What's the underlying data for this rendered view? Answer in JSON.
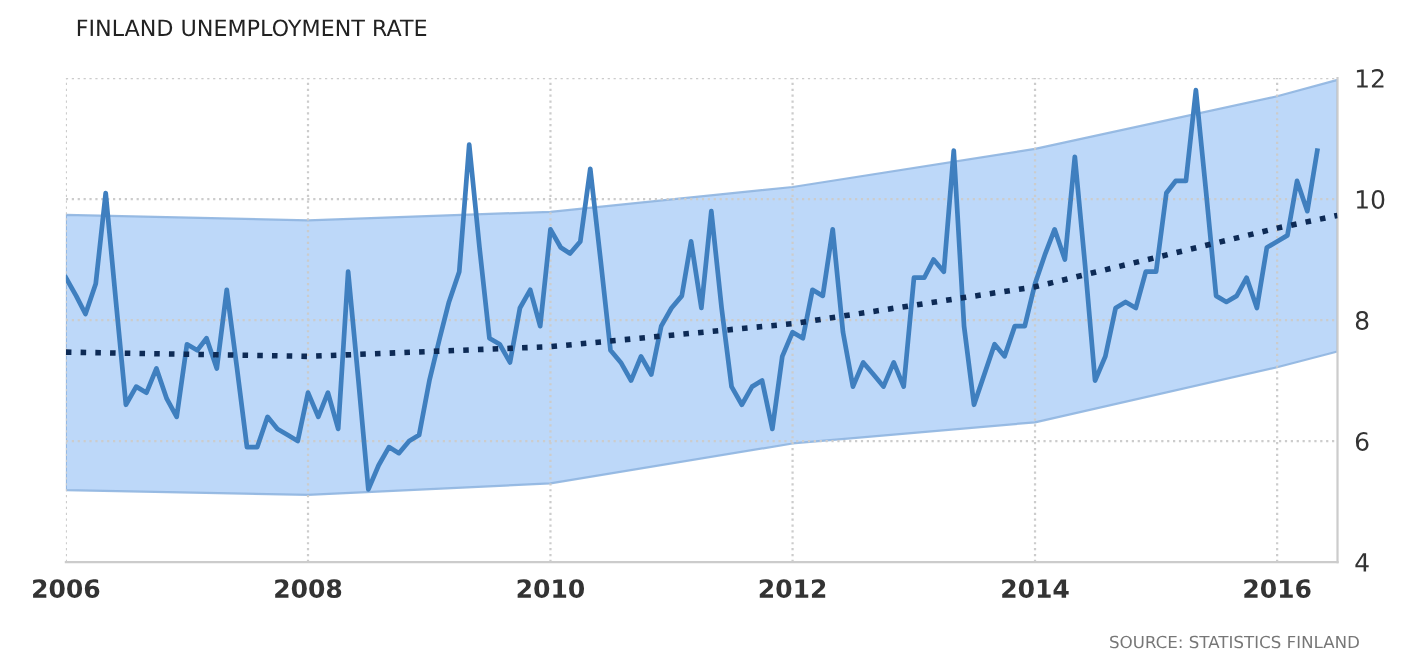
{
  "chart_data": {
    "type": "line",
    "title": "FINLAND UNEMPLOYMENT RATE",
    "annotations": [
      "SOURCE: STATISTICS FINLAND"
    ],
    "x": [
      "2006-01",
      "2006-02",
      "2006-03",
      "2006-04",
      "2006-05",
      "2006-06",
      "2006-07",
      "2006-08",
      "2006-09",
      "2006-10",
      "2006-11",
      "2006-12",
      "2007-01",
      "2007-02",
      "2007-03",
      "2007-04",
      "2007-05",
      "2007-06",
      "2007-07",
      "2007-08",
      "2007-09",
      "2007-10",
      "2007-11",
      "2007-12",
      "2008-01",
      "2008-02",
      "2008-03",
      "2008-04",
      "2008-05",
      "2008-06",
      "2008-07",
      "2008-08",
      "2008-09",
      "2008-10",
      "2008-11",
      "2008-12",
      "2009-01",
      "2009-02",
      "2009-03",
      "2009-04",
      "2009-05",
      "2009-06",
      "2009-07",
      "2009-08",
      "2009-09",
      "2009-10",
      "2009-11",
      "2009-12",
      "2010-01",
      "2010-02",
      "2010-03",
      "2010-04",
      "2010-05",
      "2010-06",
      "2010-07",
      "2010-08",
      "2010-09",
      "2010-10",
      "2010-11",
      "2010-12",
      "2011-01",
      "2011-02",
      "2011-03",
      "2011-04",
      "2011-05",
      "2011-06",
      "2011-07",
      "2011-08",
      "2011-09",
      "2011-10",
      "2011-11",
      "2011-12",
      "2012-01",
      "2012-02",
      "2012-03",
      "2012-04",
      "2012-05",
      "2012-06",
      "2012-07",
      "2012-08",
      "2012-09",
      "2012-10",
      "2012-11",
      "2012-12",
      "2013-01",
      "2013-02",
      "2013-03",
      "2013-04",
      "2013-05",
      "2013-06",
      "2013-07",
      "2013-08",
      "2013-09",
      "2013-10",
      "2013-11",
      "2013-12",
      "2014-01",
      "2014-02",
      "2014-03",
      "2014-04",
      "2014-05",
      "2014-06",
      "2014-07",
      "2014-08",
      "2014-09",
      "2014-10",
      "2014-11",
      "2014-12",
      "2015-01",
      "2015-02",
      "2015-03",
      "2015-04",
      "2015-05",
      "2015-06",
      "2015-07",
      "2015-08",
      "2015-09",
      "2015-10",
      "2015-11",
      "2015-12",
      "2016-01",
      "2016-02",
      "2016-03",
      "2016-04",
      "2016-05"
    ],
    "series": [
      {
        "color": "#3f7fbf",
        "values": [
          8.7,
          8.4,
          8.1,
          8.6,
          10.1,
          8.3,
          6.6,
          6.9,
          6.8,
          7.2,
          6.7,
          6.4,
          7.6,
          7.5,
          7.7,
          7.2,
          8.5,
          7.2,
          5.9,
          5.9,
          6.4,
          6.2,
          6.1,
          6.0,
          6.8,
          6.4,
          6.8,
          6.2,
          8.8,
          7.0,
          5.2,
          5.6,
          5.9,
          5.8,
          6.0,
          6.1,
          7.0,
          7.7,
          8.3,
          8.8,
          10.9,
          9.2,
          7.7,
          7.6,
          7.3,
          8.2,
          8.5,
          7.9,
          9.5,
          9.2,
          9.1,
          9.3,
          10.5,
          9.0,
          7.5,
          7.3,
          7.0,
          7.4,
          7.1,
          7.9,
          8.2,
          8.4,
          9.3,
          8.2,
          9.8,
          8.2,
          6.9,
          6.6,
          6.9,
          7.0,
          6.2,
          7.4,
          7.8,
          7.7,
          8.5,
          8.4,
          9.5,
          7.8,
          6.9,
          7.3,
          7.1,
          6.9,
          7.3,
          6.9,
          8.7,
          8.7,
          9.0,
          8.8,
          10.8,
          7.9,
          6.6,
          7.1,
          7.6,
          7.4,
          7.9,
          7.9,
          8.6,
          9.1,
          9.5,
          9.0,
          10.7,
          8.9,
          7.0,
          7.4,
          8.2,
          8.3,
          8.2,
          8.8,
          8.8,
          10.1,
          10.3,
          10.3,
          11.8,
          10.1,
          8.4,
          8.3,
          8.4,
          8.7,
          8.2,
          9.2,
          9.3,
          9.4,
          10.3,
          9.8,
          10.8
        ]
      },
      {
        "type": "line",
        "color": "#0d2a55",
        "line_style": "dotted",
        "x": [
          "2006-01",
          "2008-01",
          "2010-01",
          "2012-01",
          "2014-01",
          "2016-01",
          "2016-07"
        ],
        "values": [
          7.47,
          7.4,
          7.56,
          7.94,
          8.55,
          9.52,
          9.73
        ],
        "lower": [
          5.19,
          5.11,
          5.3,
          5.96,
          6.31,
          7.22,
          7.48
        ],
        "upper": [
          9.74,
          9.65,
          9.79,
          10.2,
          10.83,
          11.7,
          11.97
        ]
      }
    ],
    "xlim": [
      "2006-01",
      "2016-07"
    ],
    "xticks": [
      "2006",
      "2008",
      "2010",
      "2012",
      "2014",
      "2016"
    ],
    "ylim": [
      4,
      12
    ],
    "yticks": [
      4,
      6,
      8,
      10,
      12
    ],
    "grid": true,
    "marker": "none",
    "line_style": "solid"
  }
}
